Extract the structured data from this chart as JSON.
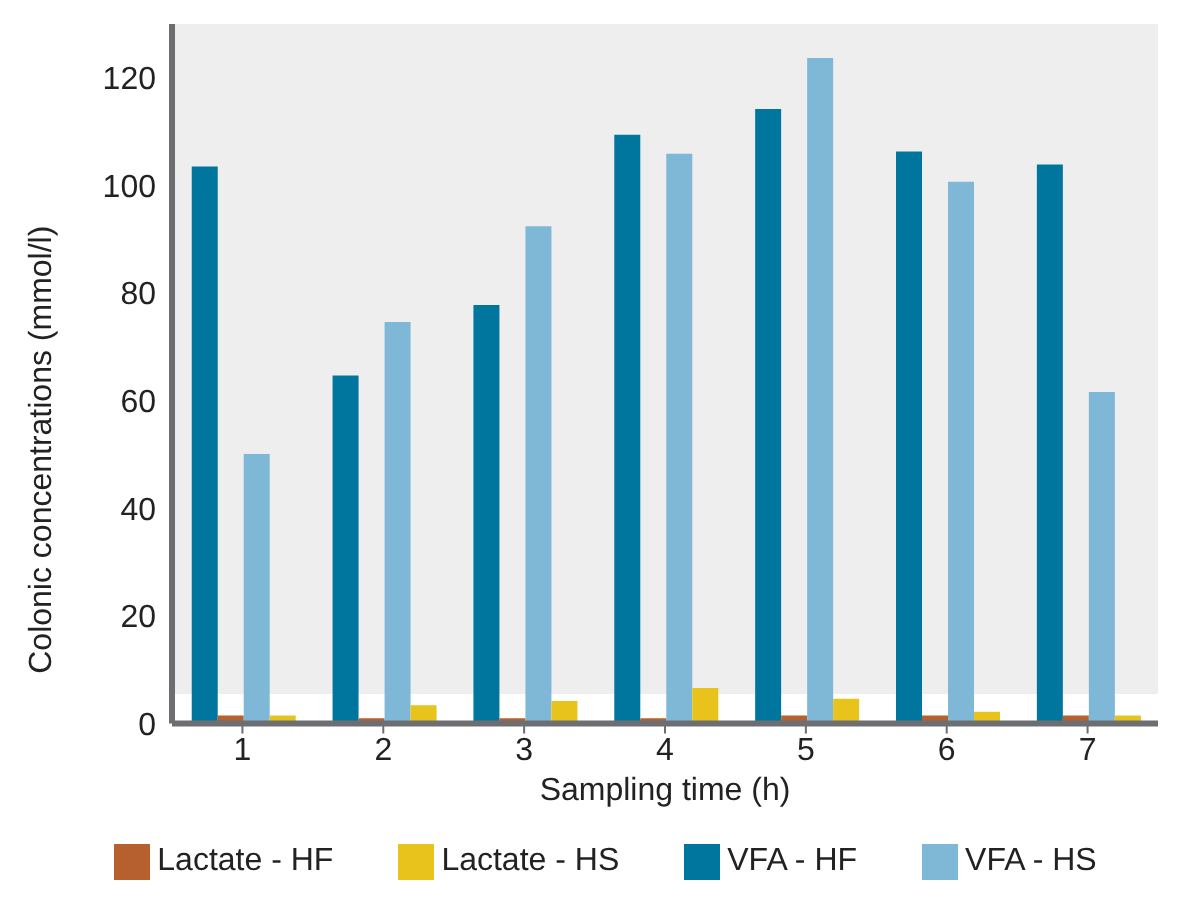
{
  "chart_data": {
    "type": "bar",
    "xlabel": "Sampling time (h)",
    "ylabel": "Colonic concentrations (mmol/l)",
    "categories": [
      "1",
      "2",
      "3",
      "4",
      "5",
      "6",
      "7"
    ],
    "series": [
      {
        "name": "VFA - HF",
        "color": "#00769f",
        "values": [
          103.5,
          64.7,
          77.8,
          109.4,
          114.2,
          106.3,
          103.9
        ]
      },
      {
        "name": "Lactate - HF",
        "color": "#b5602e",
        "values": [
          1.5,
          1,
          1,
          1,
          1.5,
          1.5,
          1.5
        ]
      },
      {
        "name": "VFA - HS",
        "color": "#7eb8d6",
        "values": [
          50.1,
          74.6,
          92.4,
          105.9,
          123.7,
          100.7,
          61.6
        ]
      },
      {
        "name": "Lactate - HS",
        "color": "#e8c31c",
        "values": [
          1.5,
          3.4,
          4.2,
          6.6,
          4.6,
          2.2,
          1.5
        ]
      }
    ],
    "ylim": [
      0,
      130
    ],
    "yticks": [
      0,
      20,
      40,
      60,
      80,
      100,
      120
    ],
    "grid": false,
    "legend": "bottom"
  }
}
